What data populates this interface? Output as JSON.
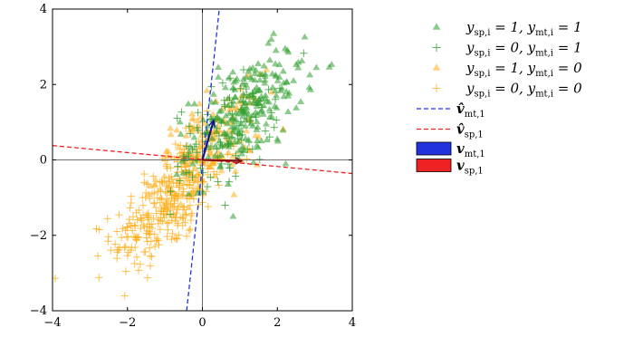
{
  "chart_data": {
    "type": "scatter",
    "title": "",
    "xlabel": "",
    "ylabel": "",
    "xlim": [
      -4,
      4
    ],
    "ylim": [
      -4,
      4
    ],
    "x_ticks": [
      -4,
      -2,
      0,
      2,
      4
    ],
    "y_ticks": [
      -4,
      -2,
      0,
      2,
      4
    ],
    "x_tick_labels": [
      "−4",
      "−2",
      "0",
      "2",
      "4"
    ],
    "y_tick_labels": [
      "−4",
      "−2",
      "0",
      "2",
      "4"
    ],
    "grid": false,
    "legend_position": "right",
    "colors": {
      "green": "#2e9e2e",
      "orange": "#ffae1a",
      "blue": "#2233dd",
      "red": "#ee2222",
      "dark_blue": "#14148c",
      "dark_red": "#8b1010"
    },
    "series": [
      {
        "id": "g_tri",
        "marker": "triangle",
        "color": "#2e9e2e",
        "legend": {
          "ys": "1",
          "ym": "1"
        },
        "cluster": {
          "center": [
            1.2,
            1.3
          ],
          "spread": [
            0.75,
            0.8
          ],
          "corr": 0.55,
          "n": 230
        }
      },
      {
        "id": "g_plus",
        "marker": "plus",
        "color": "#2e9e2e",
        "legend": {
          "ys": "0",
          "ym": "1"
        },
        "cluster": {
          "center": [
            0.6,
            0.7
          ],
          "spread": [
            0.7,
            0.8
          ],
          "corr": 0.5,
          "n": 110
        }
      },
      {
        "id": "o_tri",
        "marker": "triangle",
        "color": "#ffae1a",
        "legend": {
          "ys": "1",
          "ym": "0"
        },
        "cluster": {
          "center": [
            0.2,
            0.4
          ],
          "spread": [
            0.7,
            0.7
          ],
          "corr": 0.55,
          "n": 150
        }
      },
      {
        "id": "o_plus",
        "marker": "plus",
        "color": "#ffae1a",
        "legend": {
          "ys": "0",
          "ym": "0"
        },
        "cluster": {
          "center": [
            -0.9,
            -1.1
          ],
          "spread": [
            0.75,
            0.9
          ],
          "corr": 0.65,
          "n": 330
        }
      }
    ],
    "lines": [
      {
        "id": "vhat_mt1",
        "style": "dashed",
        "color": "#2233dd",
        "x": [
          -0.42,
          0.45
        ],
        "y": [
          -4,
          4
        ],
        "legend": {
          "sym": "v̂",
          "sub": "mt,1"
        }
      },
      {
        "id": "vhat_sp1",
        "style": "dashed",
        "color": "#ee2222",
        "x": [
          -4,
          4
        ],
        "y": [
          0.38,
          -0.36
        ],
        "legend": {
          "sym": "v̂",
          "sub": "sp,1"
        }
      }
    ],
    "arrows": [
      {
        "id": "v_mt1",
        "color": "#14148c",
        "fill_color": "#2233dd",
        "from": [
          0,
          0
        ],
        "to": [
          0.3,
          1.05
        ],
        "legend": {
          "sym": "v",
          "sub": "mt,1"
        }
      },
      {
        "id": "v_sp1",
        "color": "#8b1010",
        "fill_color": "#ee2222",
        "from": [
          0,
          0
        ],
        "to": [
          1.05,
          -0.03
        ],
        "legend": {
          "sym": "v",
          "sub": "sp,1"
        }
      }
    ]
  }
}
